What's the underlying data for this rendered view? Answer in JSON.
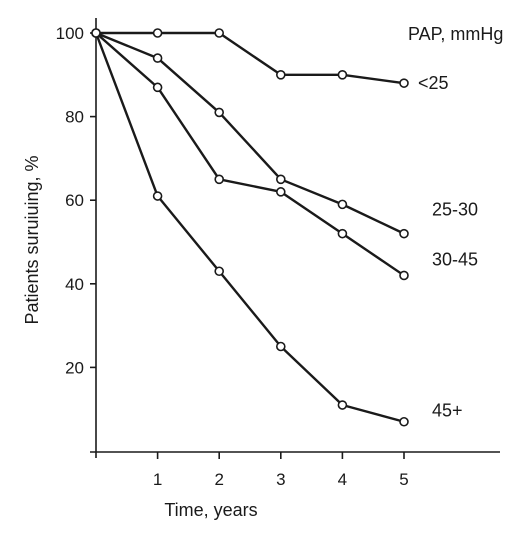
{
  "chart_data": {
    "type": "line",
    "title": "",
    "xlabel": "Time, years",
    "ylabel": "Patients suruiuing, %",
    "legend_title": "PAP, mmHg",
    "xlim": [
      0,
      5
    ],
    "ylim": [
      0,
      100
    ],
    "xticks": [
      1,
      2,
      3,
      4,
      5
    ],
    "yticks": [
      20,
      40,
      60,
      80,
      100
    ],
    "x": [
      0,
      1,
      2,
      3,
      4,
      5
    ],
    "series": [
      {
        "name": "<25",
        "values": [
          100,
          100,
          100,
          90,
          90,
          88
        ]
      },
      {
        "name": "25-30",
        "values": [
          100,
          94,
          81,
          65,
          59,
          52
        ]
      },
      {
        "name": "30-45",
        "values": [
          100,
          87,
          65,
          62,
          52,
          42
        ]
      },
      {
        "name": "45+",
        "values": [
          100,
          61,
          43,
          25,
          11,
          7
        ]
      }
    ],
    "grid": false,
    "markers": "open-circle",
    "line_color": "#1a1a1a"
  }
}
